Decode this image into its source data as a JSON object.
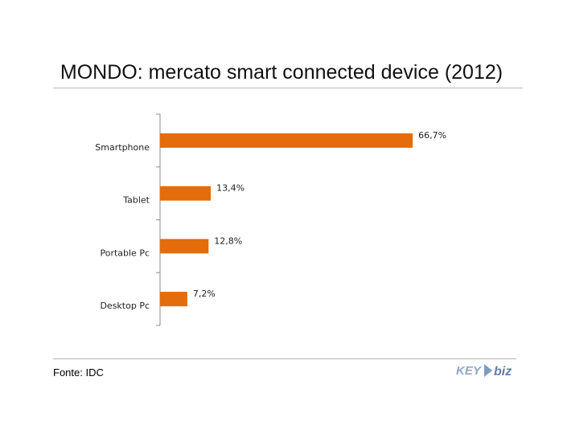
{
  "title": "MONDO: mercato smart connected device (2012)",
  "source": "Fonte: IDC",
  "logo_text": "KEY4biz",
  "bar_color": "#e46c0a",
  "chart_data": {
    "type": "bar",
    "orientation": "horizontal",
    "title": "MONDO: mercato smart connected device (2012)",
    "categories": [
      "Smartphone",
      "Tablet",
      "Portable Pc",
      "Desktop Pc"
    ],
    "values": [
      66.7,
      13.4,
      12.8,
      7.2
    ],
    "data_labels": [
      "66,7%",
      "13,4%",
      "12,8%",
      "7,2%"
    ],
    "unit": "%",
    "xlim": [
      0,
      100
    ],
    "grid": false,
    "legend": "none"
  }
}
